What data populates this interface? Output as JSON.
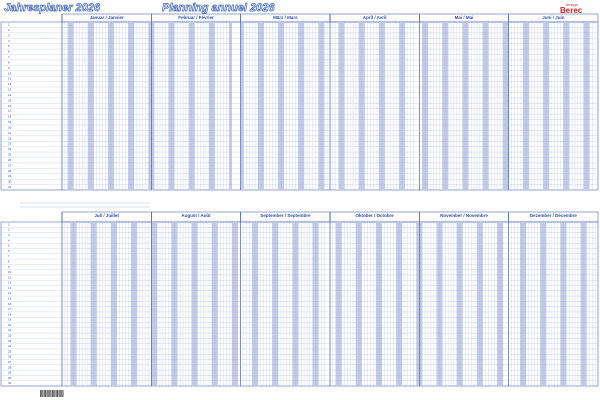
{
  "header": {
    "title_de": "Jahresplaner 2026",
    "title_fr": "Planning annuel 2026",
    "logo_small": "design",
    "logo": "Berec"
  },
  "months": [
    "Januar  /  Janvier",
    "Februar  /  Février",
    "März  /  Mars",
    "April  /  Avril",
    "Mai  /  Mai",
    "Juni  /  Juin",
    "Juli  /  Juillet",
    "August  /  Août",
    "September  /  Septembre",
    "Oktober  /  Octobre",
    "November  /  Novembre",
    "Dezember  /  Décembre"
  ],
  "row_numbers": [
    1,
    2,
    3,
    4,
    5,
    6,
    7,
    8,
    9,
    10,
    11,
    12,
    13,
    14,
    15,
    16,
    17,
    18,
    19,
    20,
    21,
    22,
    23,
    24,
    25,
    26,
    27,
    28,
    29,
    30,
    31
  ]
}
